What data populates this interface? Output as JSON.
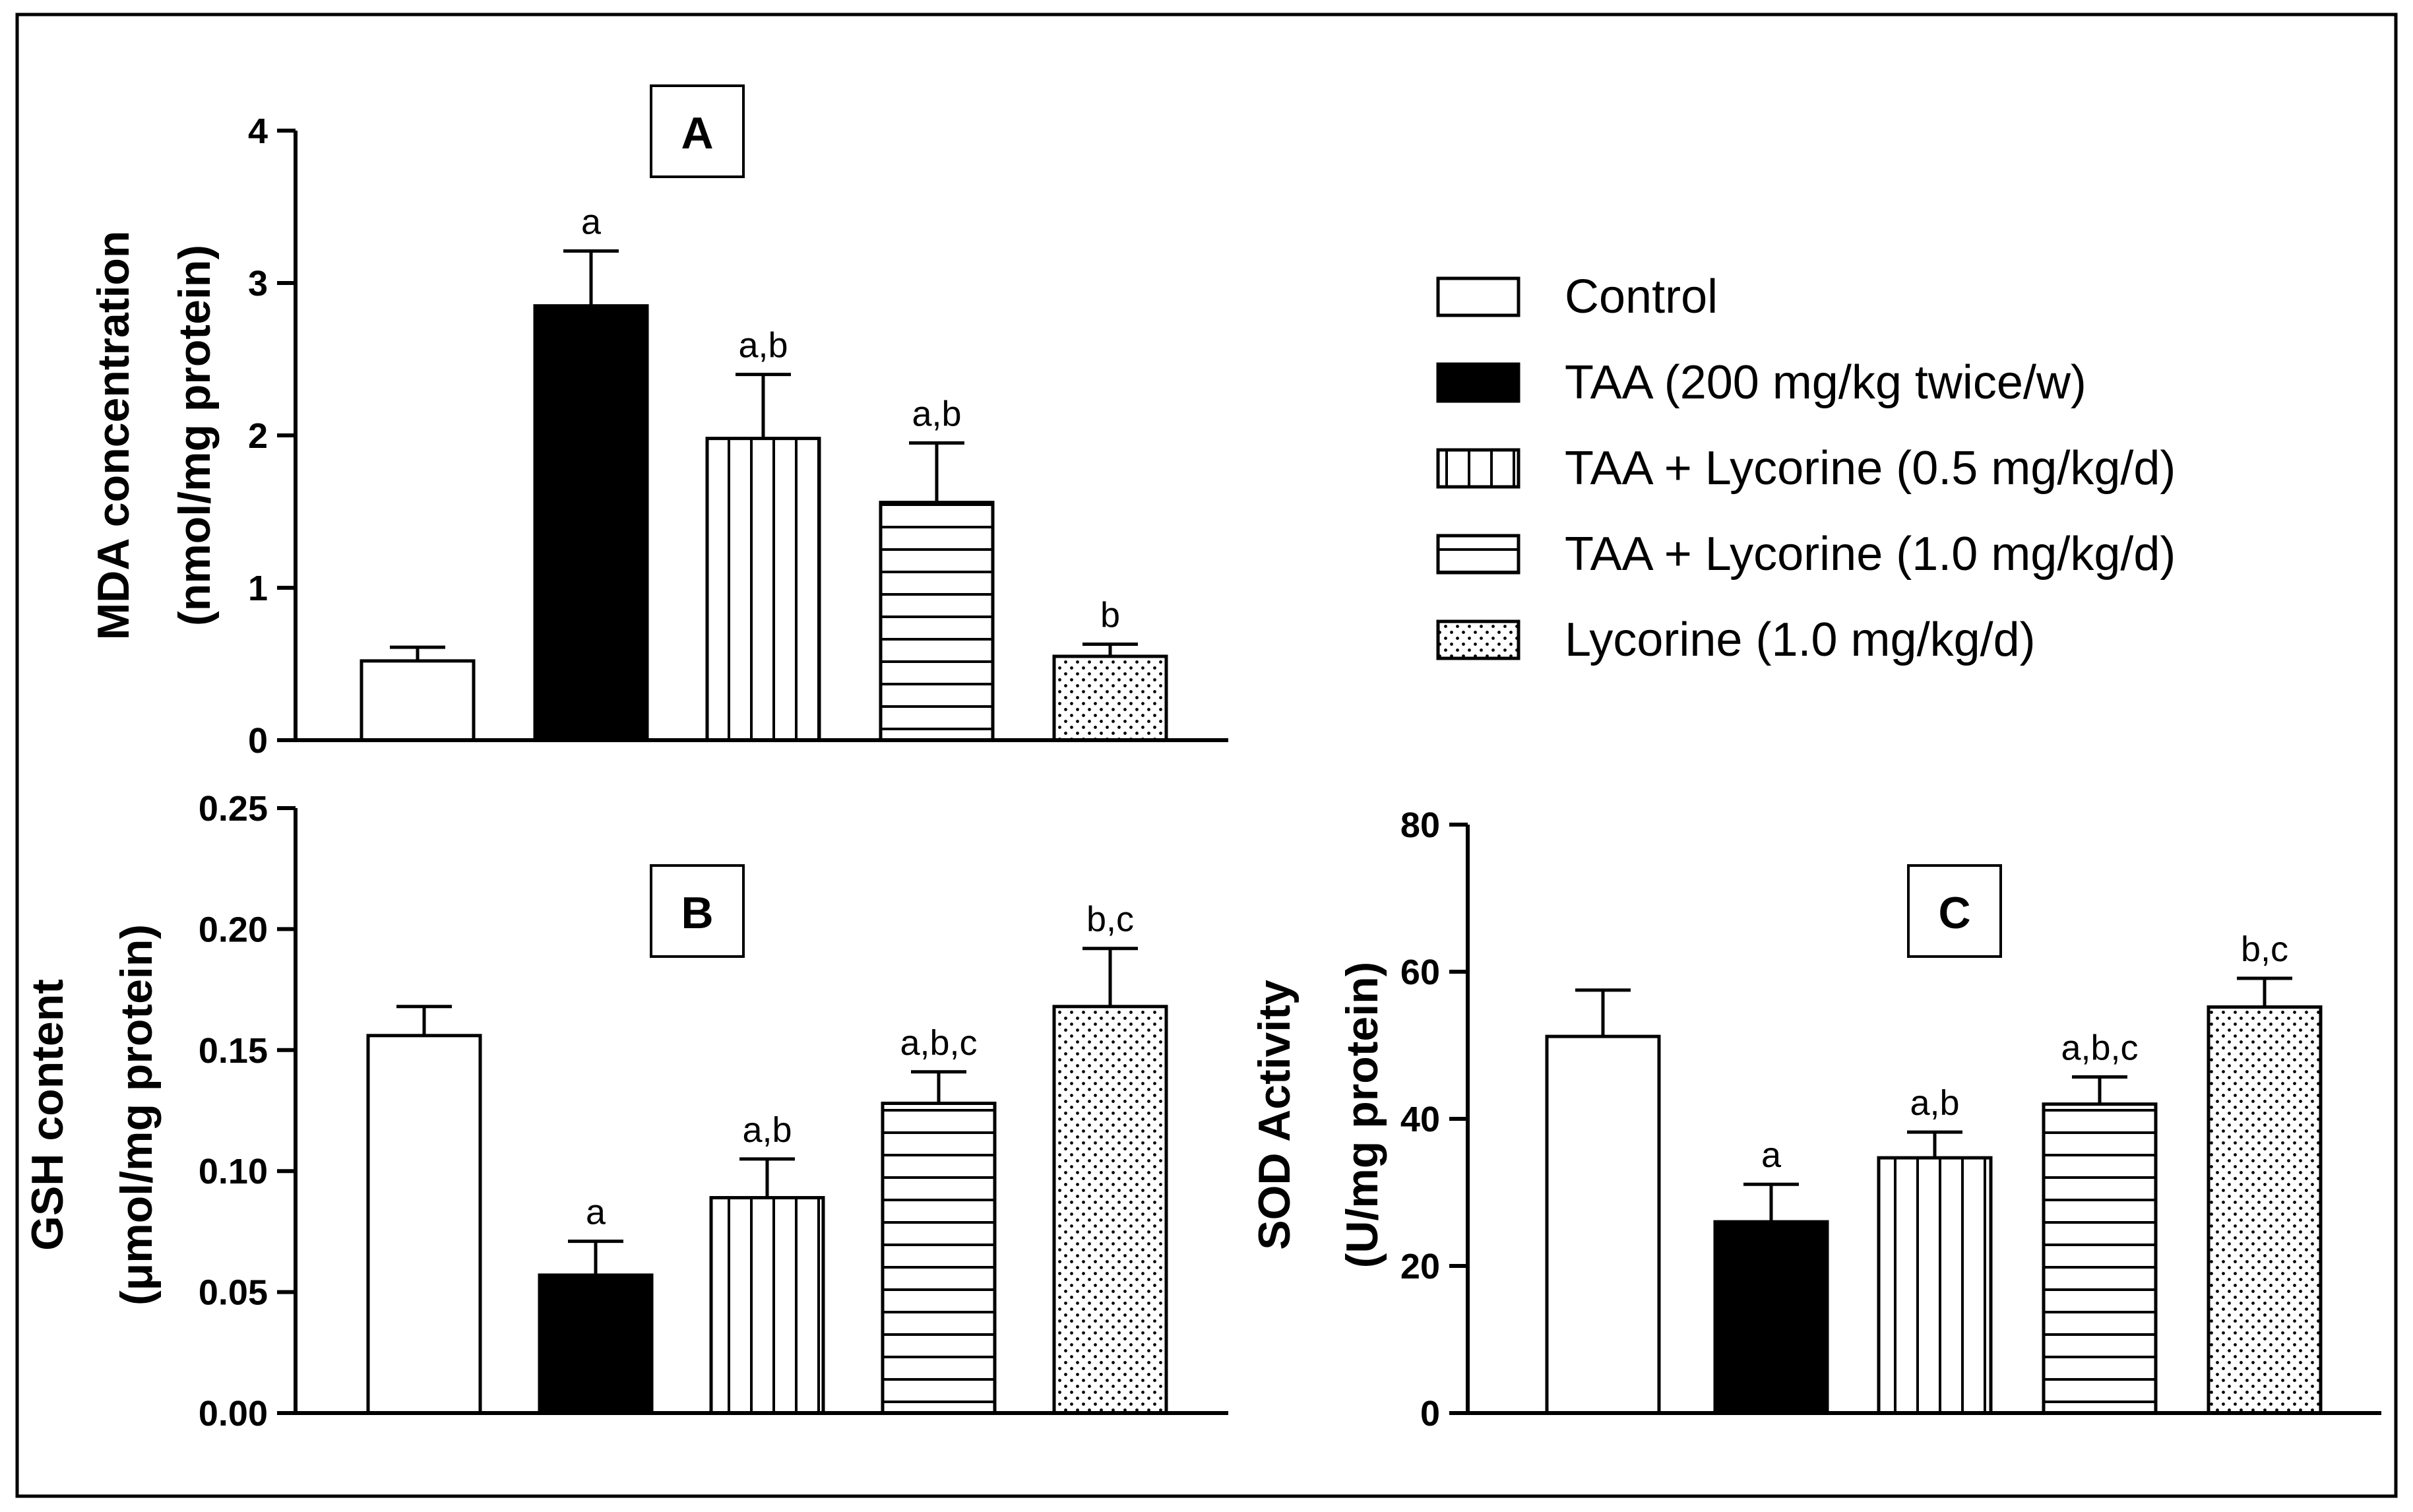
{
  "colors": {
    "background": "#ffffff",
    "ink": "#000000"
  },
  "legend": {
    "placement": "top-right",
    "items": [
      {
        "label": "Control",
        "pattern": "empty"
      },
      {
        "label": "TAA (200 mg/kg twice/w)",
        "pattern": "solid"
      },
      {
        "label": "TAA + Lycorine (0.5 mg/kg/d)",
        "pattern": "vertical-lines"
      },
      {
        "label": "TAA + Lycorine (1.0 mg/kg/d)",
        "pattern": "horizontal-lines"
      },
      {
        "label": "Lycorine (1.0 mg/kg/d)",
        "pattern": "dots"
      }
    ]
  },
  "chart_data": [
    {
      "type": "bar",
      "panel": "A",
      "ylabel": [
        "MDA concentration",
        "(nmol/mg protein)"
      ],
      "ylim": [
        0,
        4
      ],
      "yticks": [
        "0",
        "1",
        "2",
        "3",
        "4"
      ],
      "categories": [
        "Control",
        "TAA (200 mg/kg twice/w)",
        "TAA + Lycorine (0.5 mg/kg/d)",
        "TAA + Lycorine (1.0 mg/kg/d)",
        "Lycorine (1.0 mg/kg/d)"
      ],
      "values": [
        0.52,
        2.85,
        1.98,
        1.56,
        0.55
      ],
      "errors": [
        0.09,
        0.36,
        0.42,
        0.39,
        0.08
      ],
      "annotations": [
        "",
        "a",
        "a,b",
        "a,b",
        "b"
      ],
      "grid": false
    },
    {
      "type": "bar",
      "panel": "B",
      "ylabel": [
        "GSH content",
        "(μmol/mg protein)"
      ],
      "ylim": [
        0,
        0.25
      ],
      "yticks": [
        "0.00",
        "0.05",
        "0.10",
        "0.15",
        "0.20",
        "0.25"
      ],
      "categories": [
        "Control",
        "TAA (200 mg/kg twice/w)",
        "TAA + Lycorine (0.5 mg/kg/d)",
        "TAA + Lycorine (1.0 mg/kg/d)",
        "Lycorine (1.0 mg/kg/d)"
      ],
      "values": [
        0.156,
        0.057,
        0.089,
        0.128,
        0.168
      ],
      "errors": [
        0.012,
        0.014,
        0.016,
        0.013,
        0.024
      ],
      "annotations": [
        "",
        "a",
        "a,b",
        "a,b,c",
        "b,c"
      ],
      "grid": false
    },
    {
      "type": "bar",
      "panel": "C",
      "ylabel": [
        "SOD Activity",
        "(U/mg protein)"
      ],
      "ylim": [
        0,
        80
      ],
      "yticks": [
        "0",
        "20",
        "40",
        "60",
        "80"
      ],
      "categories": [
        "Control",
        "TAA (200 mg/kg twice/w)",
        "TAA + Lycorine (0.5 mg/kg/d)",
        "TAA + Lycorine (1.0 mg/kg/d)",
        "Lycorine (1.0 mg/kg/d)"
      ],
      "values": [
        51.2,
        26.0,
        34.7,
        42.0,
        55.2
      ],
      "errors": [
        6.3,
        5.1,
        3.5,
        3.7,
        3.9
      ],
      "annotations": [
        "",
        "a",
        "a,b",
        "a,b,c",
        "b,c"
      ],
      "grid": false
    }
  ]
}
